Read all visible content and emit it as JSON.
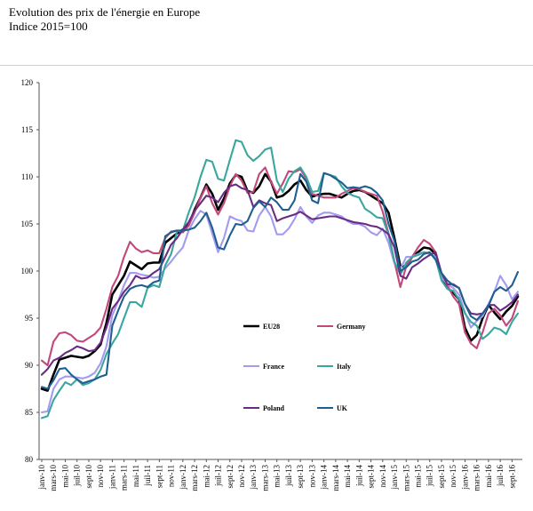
{
  "header": {
    "title": "Evolution des prix de l'énergie en Europe",
    "subtitle": "Indice 2015=100"
  },
  "chart_data": {
    "type": "line",
    "title": "Evolution des prix de l'énergie en Europe",
    "subtitle": "Indice 2015=100",
    "xlabel": "",
    "ylabel": "",
    "ylim": [
      80,
      120
    ],
    "yticks": [
      80,
      85,
      90,
      95,
      100,
      105,
      110,
      115,
      120
    ],
    "grid": false,
    "legend_position": "inside-bottom-center",
    "x": [
      "janv-10",
      "févr-10",
      "mars-10",
      "avr-10",
      "mai-10",
      "juin-10",
      "juil-10",
      "août-10",
      "sept-10",
      "oct-10",
      "nov-10",
      "déc-10",
      "janv-11",
      "févr-11",
      "mars-11",
      "avr-11",
      "mai-11",
      "juin-11",
      "juil-11",
      "août-11",
      "sept-11",
      "oct-11",
      "nov-11",
      "déc-11",
      "janv-12",
      "févr-12",
      "mars-12",
      "avr-12",
      "mai-12",
      "juin-12",
      "juil-12",
      "août-12",
      "sept-12",
      "oct-12",
      "nov-12",
      "déc-12",
      "janv-13",
      "févr-13",
      "mars-13",
      "avr-13",
      "mai-13",
      "juin-13",
      "juil-13",
      "août-13",
      "sept-13",
      "oct-13",
      "nov-13",
      "déc-13",
      "janv-14",
      "févr-14",
      "mars-14",
      "avr-14",
      "mai-14",
      "juin-14",
      "juil-14",
      "août-14",
      "sept-14",
      "oct-14",
      "nov-14",
      "déc-14",
      "janv-15",
      "févr-15",
      "mars-15",
      "avr-15",
      "mai-15",
      "juin-15",
      "juil-15",
      "août-15",
      "sept-15",
      "oct-15",
      "nov-15",
      "déc-15",
      "janv-16",
      "févr-16",
      "mars-16",
      "avr-16",
      "mai-16",
      "juin-16",
      "juil-16",
      "août-16",
      "sept-16",
      "oct-16"
    ],
    "x_tick_labels": [
      "janv-10",
      "mars-10",
      "mai-10",
      "juil-10",
      "sept-10",
      "nov-10",
      "janv-11",
      "mars-11",
      "mai-11",
      "juil-11",
      "sept-11",
      "nov-11",
      "janv-12",
      "mars-12",
      "mai-12",
      "juil-12",
      "sept-12",
      "nov-12",
      "janv-13",
      "mars-13",
      "mai-13",
      "juil-13",
      "sept-13",
      "nov-13",
      "janv-14",
      "mars-14",
      "mai-14",
      "juil-14",
      "sept-14",
      "nov-14",
      "janv-15",
      "mars-15",
      "mai-15",
      "juil-15",
      "sept-15",
      "nov-15",
      "janv-16",
      "mars-16",
      "mai-16",
      "juil-16",
      "sept-16"
    ],
    "series": [
      {
        "name": "EU28",
        "color": "#000000",
        "values": [
          87.5,
          87.3,
          89.0,
          90.6,
          90.8,
          91.0,
          90.9,
          90.8,
          91.0,
          91.5,
          92.2,
          94.5,
          97.5,
          98.5,
          99.5,
          101.0,
          100.6,
          100.2,
          100.8,
          100.9,
          100.9,
          103.0,
          103.5,
          104.0,
          104.4,
          104.9,
          106.5,
          107.8,
          109.2,
          108.2,
          106.5,
          107.7,
          109.3,
          110.2,
          110.0,
          108.5,
          108.3,
          109.0,
          110.3,
          109.5,
          107.8,
          108.0,
          108.5,
          109.2,
          109.6,
          108.6,
          107.9,
          108.1,
          108.2,
          108.2,
          108.0,
          107.8,
          108.2,
          108.5,
          108.6,
          108.4,
          108.0,
          107.6,
          107.2,
          106.2,
          103.5,
          100.5,
          100.5,
          101.5,
          102.0,
          102.5,
          102.4,
          101.8,
          99.5,
          98.2,
          97.7,
          97.0,
          94.0,
          92.6,
          93.2,
          95.0,
          96.4,
          95.6,
          94.9,
          95.7,
          96.3,
          97.3
        ]
      },
      {
        "name": "Germany",
        "color": "#c2477a",
        "values": [
          90.5,
          90.0,
          92.5,
          93.4,
          93.5,
          93.2,
          92.6,
          92.5,
          92.9,
          93.3,
          94.0,
          96.0,
          98.3,
          99.5,
          101.5,
          103.1,
          102.4,
          102.0,
          102.2,
          101.9,
          101.9,
          103.5,
          104.2,
          104.3,
          104.1,
          104.8,
          106.2,
          107.8,
          109.0,
          107.2,
          106.0,
          107.2,
          109.0,
          110.3,
          109.6,
          108.3,
          108.4,
          110.3,
          111.0,
          109.5,
          108.2,
          109.3,
          110.6,
          110.5,
          110.8,
          109.8,
          108.2,
          108.0,
          107.8,
          107.8,
          107.8,
          108.2,
          108.5,
          108.8,
          108.7,
          108.4,
          108.2,
          108.0,
          106.3,
          104.0,
          101.0,
          98.3,
          100.5,
          101.5,
          102.5,
          103.3,
          102.9,
          102.0,
          99.5,
          98.5,
          97.3,
          96.5,
          93.5,
          92.3,
          91.8,
          93.5,
          95.5,
          96.0,
          95.3,
          94.2,
          95.0,
          96.8
        ]
      },
      {
        "name": "France",
        "color": "#a29bf0",
        "values": [
          85.0,
          85.1,
          87.5,
          88.5,
          88.8,
          88.8,
          88.7,
          88.6,
          88.8,
          89.2,
          90.2,
          92.0,
          95.3,
          96.8,
          98.5,
          99.8,
          99.8,
          99.6,
          99.5,
          99.3,
          99.4,
          100.3,
          101.0,
          101.8,
          102.5,
          104.3,
          105.5,
          106.4,
          106.0,
          104.0,
          102.0,
          103.5,
          105.8,
          105.5,
          105.3,
          104.3,
          104.2,
          105.9,
          106.8,
          105.8,
          103.9,
          103.9,
          104.5,
          105.5,
          106.8,
          105.8,
          105.1,
          105.9,
          106.2,
          106.2,
          106.0,
          105.8,
          105.3,
          105.0,
          105.0,
          104.7,
          104.1,
          103.8,
          104.5,
          103.0,
          100.8,
          100.2,
          101.5,
          101.5,
          101.8,
          102.0,
          101.8,
          101.5,
          99.3,
          98.6,
          98.2,
          97.5,
          95.6,
          94.0,
          94.7,
          95.2,
          96.5,
          97.8,
          99.5,
          98.5,
          97.0,
          97.8
        ]
      },
      {
        "name": "Italy",
        "color": "#3aa6a0",
        "values": [
          84.4,
          84.6,
          86.3,
          87.3,
          88.2,
          87.9,
          88.5,
          87.9,
          88.1,
          88.5,
          89.5,
          91.2,
          92.3,
          93.3,
          95.0,
          96.7,
          96.7,
          96.2,
          98.2,
          98.5,
          98.3,
          100.6,
          101.8,
          104.2,
          104.3,
          106.2,
          107.8,
          110.0,
          111.8,
          111.6,
          109.8,
          109.6,
          111.8,
          113.9,
          113.7,
          112.3,
          111.7,
          112.2,
          112.9,
          113.1,
          109.6,
          108.4,
          109.8,
          110.6,
          111.0,
          110.0,
          108.4,
          108.5,
          110.4,
          110.2,
          110.0,
          109.0,
          108.3,
          108.0,
          107.8,
          106.6,
          106.2,
          105.7,
          105.6,
          103.8,
          101.0,
          99.6,
          100.9,
          101.5,
          101.7,
          102.0,
          101.9,
          101.3,
          99.0,
          98.1,
          97.9,
          97.0,
          95.5,
          94.6,
          94.2,
          92.8,
          93.3,
          94.0,
          93.8,
          93.3,
          94.6,
          95.5
        ]
      },
      {
        "name": "Poland",
        "color": "#6a2c83",
        "values": [
          89.0,
          89.6,
          90.5,
          90.8,
          91.3,
          91.6,
          92.0,
          91.8,
          91.5,
          91.6,
          92.4,
          94.0,
          96.0,
          96.8,
          97.8,
          98.5,
          99.5,
          99.2,
          99.3,
          99.8,
          100.2,
          101.5,
          102.8,
          103.5,
          104.4,
          105.2,
          106.4,
          107.2,
          108.0,
          107.8,
          107.3,
          108.3,
          109.0,
          109.2,
          108.8,
          108.6,
          106.8,
          107.5,
          107.2,
          107.0,
          105.3,
          105.6,
          105.8,
          106.0,
          106.3,
          105.9,
          105.5,
          105.6,
          105.7,
          105.8,
          105.8,
          105.6,
          105.4,
          105.2,
          105.1,
          105.0,
          104.8,
          104.7,
          104.4,
          103.9,
          102.5,
          99.5,
          99.2,
          100.4,
          100.8,
          101.3,
          101.7,
          102.0,
          99.8,
          98.6,
          98.6,
          98.2,
          96.5,
          95.5,
          95.4,
          95.5,
          96.4,
          96.4,
          95.8,
          96.2,
          96.7,
          97.5
        ]
      },
      {
        "name": "UK",
        "color": "#1f5f8f",
        "values": [
          87.7,
          87.5,
          88.4,
          89.6,
          89.7,
          89.0,
          88.5,
          88.1,
          88.3,
          88.5,
          88.8,
          89.0,
          94.2,
          95.8,
          97.3,
          98.1,
          98.4,
          98.5,
          98.3,
          98.8,
          99.0,
          103.7,
          104.1,
          104.3,
          104.3,
          104.4,
          104.6,
          105.3,
          106.2,
          104.6,
          102.5,
          102.3,
          103.8,
          105.0,
          104.9,
          105.3,
          106.7,
          107.4,
          106.8,
          107.8,
          107.3,
          106.5,
          106.5,
          107.5,
          110.3,
          109.5,
          107.5,
          107.2,
          110.4,
          110.2,
          109.8,
          109.4,
          108.8,
          108.9,
          108.8,
          109.0,
          108.8,
          108.3,
          107.5,
          105.0,
          103.2,
          100.0,
          100.4,
          101.0,
          101.2,
          101.8,
          102.0,
          101.2,
          99.8,
          99.0,
          98.5,
          98.2,
          96.5,
          95.2,
          94.8,
          95.5,
          96.3,
          97.8,
          98.3,
          97.9,
          98.5,
          99.9
        ]
      }
    ]
  }
}
